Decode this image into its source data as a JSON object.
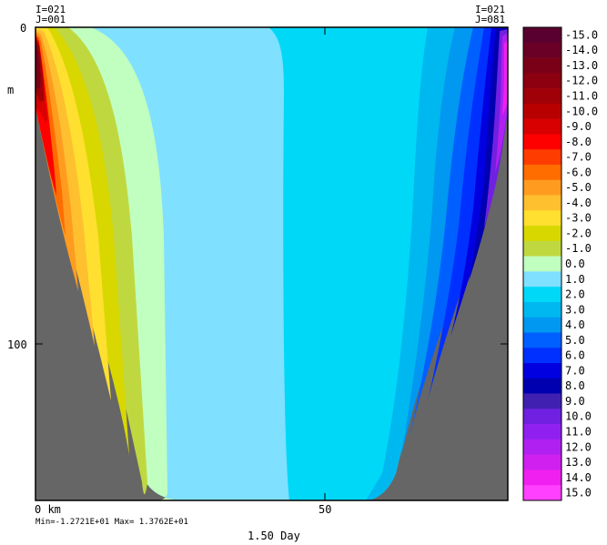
{
  "corner_labels": {
    "top_left_i": "I=021",
    "top_left_j": "J=001",
    "top_right_i": "I=021",
    "top_right_j": "J=081"
  },
  "axis": {
    "x_unit_label": "0 km",
    "x_tick_50": "50",
    "y_tick_0": "0",
    "y_tick_100": "100",
    "y_unit_label": "m"
  },
  "minmax_text": "Min=-1.2721E+01  Max= 1.3762E+01",
  "time_label": "1.50 Day",
  "colors": {
    "land": "#666666",
    "frame": "#000000"
  },
  "chart_data": {
    "type": "heatmap",
    "title": "",
    "xlabel": "km",
    "ylabel": "m",
    "xlim": [
      0,
      90
    ],
    "ylim": [
      147,
      0
    ],
    "x_ticks": [
      0,
      50
    ],
    "y_ticks": [
      0,
      100
    ],
    "min": -12.721,
    "max": 13.762,
    "time": "1.50 Day",
    "colorbar": {
      "labels": [
        "-15.0",
        "-14.0",
        "-13.0",
        "-12.0",
        "-11.0",
        "-10.0",
        "-9.0",
        "-8.0",
        "-7.0",
        "-6.0",
        "-5.0",
        "-4.0",
        "-3.0",
        "-2.0",
        "-1.0",
        "0.0",
        "1.0",
        "2.0",
        "3.0",
        "4.0",
        "5.0",
        "6.0",
        "7.0",
        "8.0",
        "9.0",
        "10.0",
        "11.0",
        "12.0",
        "13.0",
        "14.0",
        "15.0"
      ],
      "colors": [
        "#5a0030",
        "#6a0025",
        "#7a0018",
        "#8c0010",
        "#a00008",
        "#b80000",
        "#d80000",
        "#ff0000",
        "#ff3c00",
        "#ff6c00",
        "#ff9c20",
        "#ffc030",
        "#ffe030",
        "#d8d800",
        "#c0d840",
        "#c0ffc0",
        "#80e0ff",
        "#00d8f8",
        "#00b8f0",
        "#0098f0",
        "#0060ff",
        "#0030ff",
        "#0000e0",
        "#0000b0",
        "#4020b0",
        "#7020e0",
        "#9020f0",
        "#b020f0",
        "#d020f0",
        "#f020f0",
        "#ff40ff"
      ]
    }
  }
}
